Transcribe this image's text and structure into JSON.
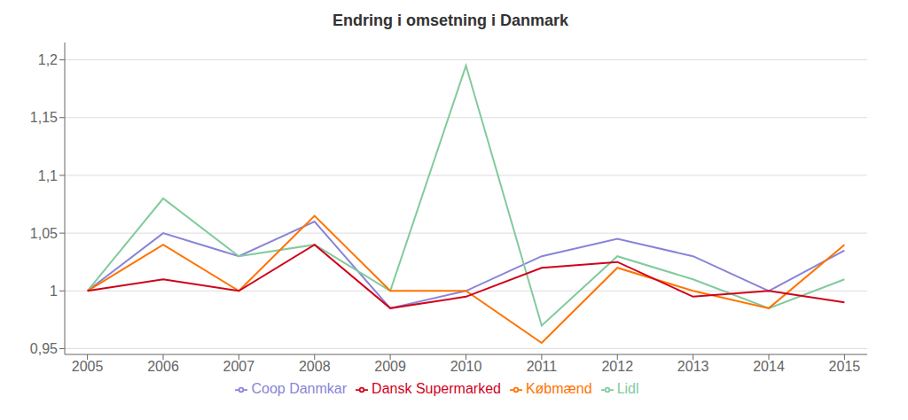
{
  "chart_data": {
    "type": "line",
    "title": "Endring i omsetning i Danmark",
    "x": [
      2005,
      2006,
      2007,
      2008,
      2009,
      2010,
      2011,
      2012,
      2013,
      2014,
      2015
    ],
    "series": [
      {
        "name": "Coop Danmkar",
        "color": "#8884d8",
        "values": [
          1.0,
          1.05,
          1.03,
          1.06,
          0.985,
          1.0,
          1.03,
          1.045,
          1.03,
          1.0,
          1.035
        ]
      },
      {
        "name": "Lidl",
        "color": "#82ca9d",
        "values": [
          1.0,
          1.08,
          1.03,
          1.04,
          1.0,
          1.195,
          0.97,
          1.03,
          1.01,
          0.985,
          1.01
        ]
      },
      {
        "name": "Købmænd",
        "color": "#ff7300",
        "values": [
          1.0,
          1.04,
          1.0,
          1.065,
          1.0,
          1.0,
          0.955,
          1.02,
          1.0,
          0.985,
          1.04
        ]
      },
      {
        "name": "Dansk Supermarked",
        "color": "#d0021b",
        "values": [
          1.0,
          1.01,
          1.0,
          1.04,
          0.985,
          0.995,
          1.02,
          1.025,
          0.995,
          1.0,
          0.99
        ]
      }
    ],
    "xlim": [
      2004.7,
      2015.3
    ],
    "xticks": [
      2005,
      2006,
      2007,
      2008,
      2009,
      2010,
      2011,
      2012,
      2013,
      2014,
      2015
    ],
    "ylim": [
      0.945,
      1.215
    ],
    "yticks": [
      {
        "value": 0.95,
        "label": "0,95"
      },
      1,
      {
        "value": 1.05,
        "label": "1,05"
      },
      {
        "value": 1.1,
        "label": "1,1"
      },
      {
        "value": 1.15,
        "label": "1,15"
      },
      {
        "value": 1.2,
        "label": "1,2"
      }
    ],
    "grid": true,
    "legend": "bottom"
  }
}
